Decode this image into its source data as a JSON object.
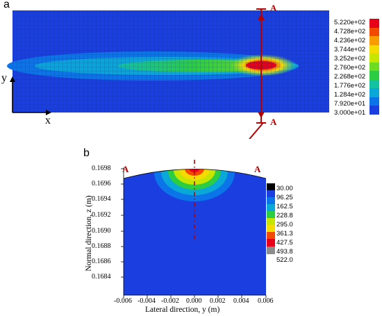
{
  "chart_data": [
    {
      "type": "heatmap",
      "panel": "a",
      "axes": {
        "x": "x",
        "y": "y"
      },
      "section_marker": "A",
      "colorbar_values": [
        "5.220e+02",
        "4.728e+02",
        "4.236e+02",
        "3.744e+02",
        "3.252e+02",
        "2.760e+02",
        "2.268e+02",
        "1.776e+02",
        "1.284e+02",
        "7.920e+01",
        "3.000e+01"
      ],
      "colors": [
        "#e8001a",
        "#f24a00",
        "#f99c00",
        "#f5dc00",
        "#c6e600",
        "#6edc20",
        "#2ccd42",
        "#12c2a0",
        "#0aa8d8",
        "#0a74e8",
        "#1a3ee0"
      ]
    },
    {
      "type": "heatmap",
      "panel": "b",
      "xlabel": "Lateral direction, y (m)",
      "ylabel": "Normal direction, z (m)",
      "xlim": [
        -0.006,
        0.006
      ],
      "ylim": [
        0.1682,
        0.1698
      ],
      "x_ticks": [
        "-0.006",
        "-0.004",
        "-0.002",
        "0.000",
        "0.002",
        "0.004",
        "0.006"
      ],
      "y_ticks": [
        "0.1698",
        "0.1696",
        "0.1694",
        "0.1692",
        "0.1690",
        "0.1688",
        "0.1686",
        "0.1684"
      ],
      "section_marker": "A",
      "colorbar_values": [
        "30.00",
        "96.25",
        "162.5",
        "228.8",
        "295.0",
        "361.3",
        "427.5",
        "493.8",
        "522.0"
      ],
      "colors": [
        "#000000",
        "#1a3ee0",
        "#0a74e8",
        "#0aa8d8",
        "#2ccd42",
        "#c6e600",
        "#f5dc00",
        "#f24a00",
        "#e8001a",
        "#8c8c8c"
      ]
    }
  ]
}
